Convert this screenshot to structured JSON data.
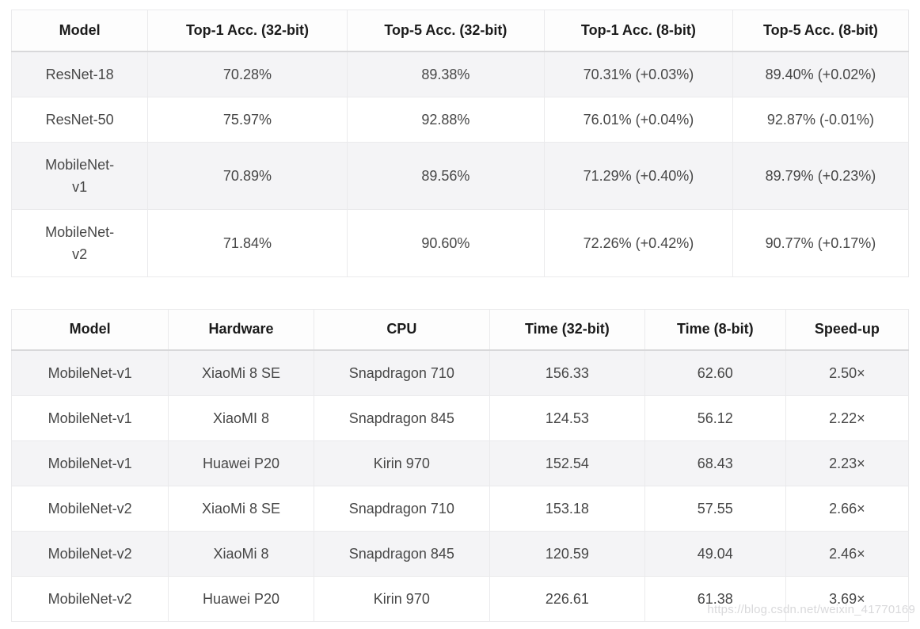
{
  "colors": {
    "header_text": "#1b1b1b",
    "body_text": "#474747",
    "border": "#eaeaec",
    "header_border": "#d8d8da",
    "row_alt_bg": "#f4f4f6",
    "row_bg": "#ffffff",
    "header_bg": "#fdfdfd",
    "watermark": "#d9d9db"
  },
  "watermark": {
    "text": "https://blog.csdn.net/weixin_41770169"
  },
  "chart_data": [
    {
      "type": "table",
      "name": "accuracy-table",
      "title": "",
      "columns": [
        "Model",
        "Top-1 Acc. (32-bit)",
        "Top-5 Acc. (32-bit)",
        "Top-1 Acc. (8-bit)",
        "Top-5 Acc. (8-bit)"
      ],
      "rows": [
        [
          "ResNet-18",
          "70.28%",
          "89.38%",
          "70.31% (+0.03%)",
          "89.40% (+0.02%)"
        ],
        [
          "ResNet-50",
          "75.97%",
          "92.88%",
          "76.01% (+0.04%)",
          "92.87% (-0.01%)"
        ],
        [
          "MobileNet-\nv1",
          "70.89%",
          "89.56%",
          "71.29% (+0.40%)",
          "89.79% (+0.23%)"
        ],
        [
          "MobileNet-\nv2",
          "71.84%",
          "90.60%",
          "72.26% (+0.42%)",
          "90.77% (+0.17%)"
        ]
      ]
    },
    {
      "type": "table",
      "name": "latency-table",
      "title": "",
      "columns": [
        "Model",
        "Hardware",
        "CPU",
        "Time (32-bit)",
        "Time (8-bit)",
        "Speed-up"
      ],
      "rows": [
        [
          "MobileNet-v1",
          "XiaoMi 8 SE",
          "Snapdragon 710",
          "156.33",
          "62.60",
          "2.50×"
        ],
        [
          "MobileNet-v1",
          "XiaoMI 8",
          "Snapdragon 845",
          "124.53",
          "56.12",
          "2.22×"
        ],
        [
          "MobileNet-v1",
          "Huawei P20",
          "Kirin 970",
          "152.54",
          "68.43",
          "2.23×"
        ],
        [
          "MobileNet-v2",
          "XiaoMi 8 SE",
          "Snapdragon 710",
          "153.18",
          "57.55",
          "2.66×"
        ],
        [
          "MobileNet-v2",
          "XiaoMi 8",
          "Snapdragon 845",
          "120.59",
          "49.04",
          "2.46×"
        ],
        [
          "MobileNet-v2",
          "Huawei P20",
          "Kirin 970",
          "226.61",
          "61.38",
          "3.69×"
        ]
      ]
    }
  ]
}
